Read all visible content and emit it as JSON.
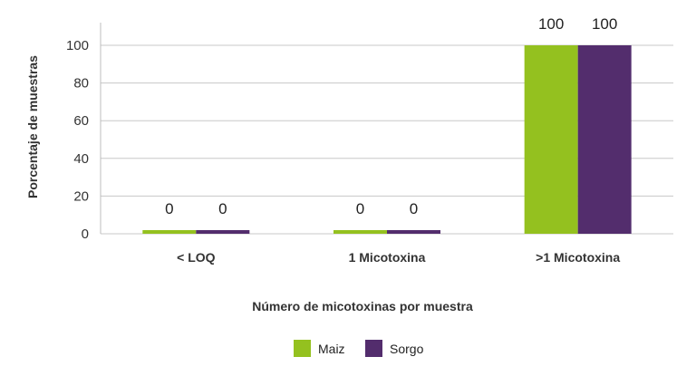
{
  "chart_data": {
    "type": "bar",
    "categories": [
      "< LOQ",
      "1 Micotoxina",
      ">1 Micotoxina"
    ],
    "series": [
      {
        "name": "Maiz",
        "values": [
          0,
          0,
          100
        ],
        "color": "#94c11f"
      },
      {
        "name": "Sorgo",
        "values": [
          0,
          0,
          100
        ],
        "color": "#532d6d"
      }
    ],
    "data_labels": [
      [
        "0",
        "0",
        "100"
      ],
      [
        "0",
        "0",
        "100"
      ]
    ],
    "title": "",
    "xlabel": "Número de micotoxinas por muestra",
    "ylabel": "Porcentaje de muestras",
    "ylim": [
      0,
      100
    ],
    "yticks": [
      0,
      20,
      40,
      60,
      80,
      100
    ],
    "grid": true,
    "legend": "bottom-center"
  }
}
